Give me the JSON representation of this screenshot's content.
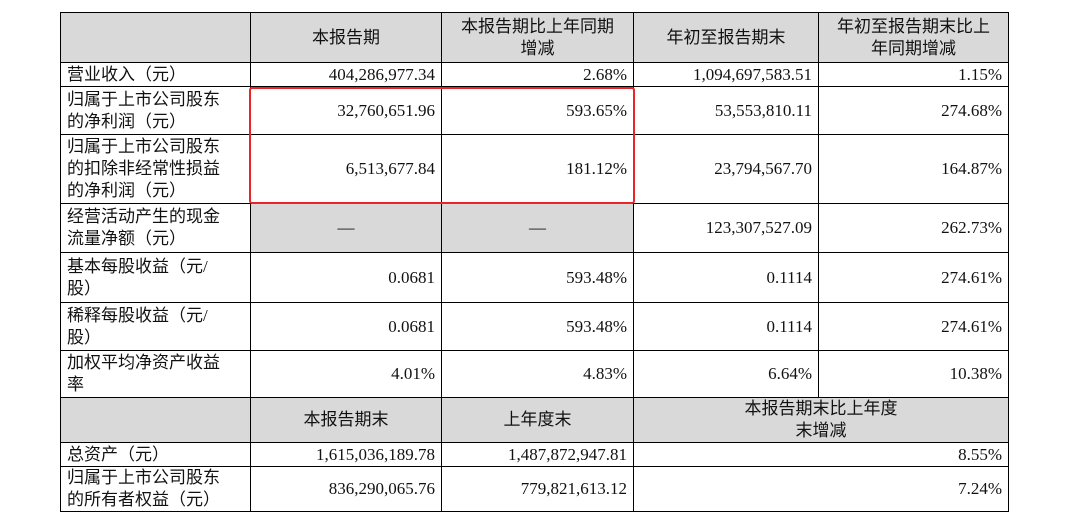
{
  "table": {
    "header": [
      "本报告期",
      "本报告期比上年同期增减",
      "年初至报告期末",
      "年初至报告期末比上年同期增减"
    ],
    "rows": [
      [
        "营业收入（元）",
        "404,286,977.34",
        "2.68%",
        "1,094,697,583.51",
        "1.15%"
      ],
      [
        "归属于上市公司股东的净利润（元）",
        "32,760,651.96",
        "593.65%",
        "53,553,810.11",
        "274.68%"
      ],
      [
        "归属于上市公司股东的扣除非经常性损益的净利润（元）",
        "6,513,677.84",
        "181.12%",
        "23,794,567.70",
        "164.87%"
      ],
      [
        "经营活动产生的现金流量净额（元）",
        "—",
        "—",
        "123,307,527.09",
        "262.73%"
      ],
      [
        "基本每股收益（元/股）",
        "0.0681",
        "593.48%",
        "0.1114",
        "274.61%"
      ],
      [
        "稀释每股收益（元/股）",
        "0.0681",
        "593.48%",
        "0.1114",
        "274.61%"
      ],
      [
        "加权平均净资产收益率",
        "4.01%",
        "4.83%",
        "6.64%",
        "10.38%"
      ]
    ],
    "header2": [
      "本报告期末",
      "上年度末",
      "本报告期末比上年度末增减"
    ],
    "rows2": [
      [
        "总资产（元）",
        "1,615,036,189.78",
        "1,487,872,947.81",
        "8.55%"
      ],
      [
        "归属于上市公司股东的所有者权益（元）",
        "836,290,065.76",
        "779,821,613.12",
        "7.24%"
      ]
    ]
  }
}
